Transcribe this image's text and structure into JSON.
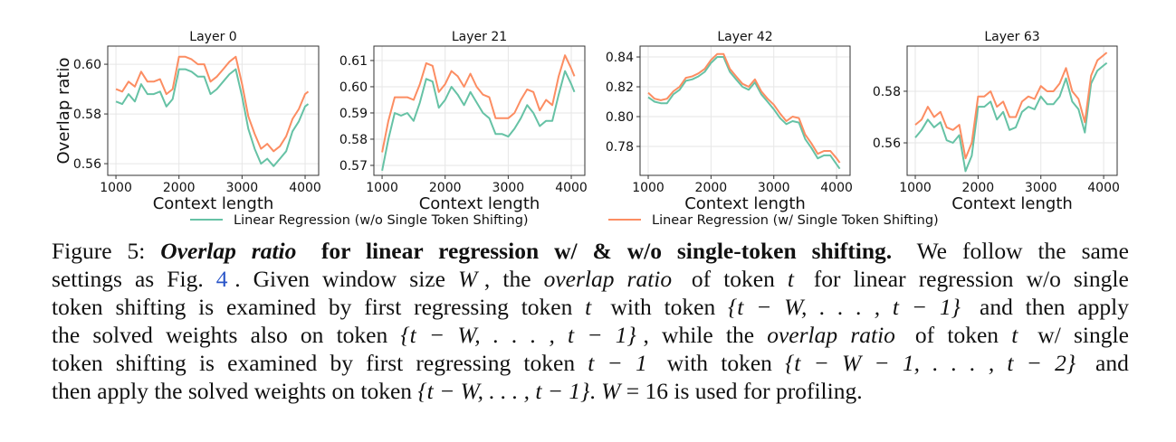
{
  "colors": {
    "without": "#66c2a5",
    "with": "#fc8d62",
    "grid": "#e6e6e6",
    "link": "#2a55c8"
  },
  "chart_data": [
    {
      "type": "line",
      "title": "Layer 0",
      "xlabel": "Context length",
      "ylabel": "Overlap ratio",
      "xlim": [
        870,
        4215
      ],
      "ylim": [
        0.5553,
        0.6073
      ],
      "xticks": [
        1000,
        2000,
        3000,
        4000
      ],
      "xtick_labels": [
        "1000",
        "2000",
        "3000",
        "4000"
      ],
      "yticks": [
        0.56,
        0.58,
        0.6
      ],
      "ytick_labels": [
        "0.56",
        "0.58",
        "0.60"
      ],
      "x": [
        1000,
        1100,
        1200,
        1300,
        1400,
        1500,
        1600,
        1700,
        1800,
        1900,
        2000,
        2100,
        2200,
        2300,
        2400,
        2500,
        2600,
        2700,
        2800,
        2900,
        3000,
        3100,
        3200,
        3300,
        3400,
        3500,
        3600,
        3700,
        3800,
        3900,
        4000,
        4050
      ],
      "series": [
        {
          "name": "Linear Regression (w/o Single Token Shifting)",
          "values": [
            0.585,
            0.584,
            0.588,
            0.585,
            0.592,
            0.588,
            0.588,
            0.589,
            0.583,
            0.586,
            0.598,
            0.598,
            0.597,
            0.595,
            0.595,
            0.588,
            0.59,
            0.593,
            0.596,
            0.598,
            0.587,
            0.574,
            0.566,
            0.56,
            0.562,
            0.559,
            0.562,
            0.565,
            0.573,
            0.577,
            0.583,
            0.584
          ]
        },
        {
          "name": "Linear Regression (w/ Single Token Shifting)",
          "values": [
            0.59,
            0.589,
            0.593,
            0.591,
            0.597,
            0.593,
            0.593,
            0.594,
            0.588,
            0.59,
            0.603,
            0.603,
            0.602,
            0.6,
            0.6,
            0.593,
            0.595,
            0.598,
            0.601,
            0.603,
            0.592,
            0.579,
            0.572,
            0.566,
            0.568,
            0.565,
            0.567,
            0.571,
            0.578,
            0.582,
            0.588,
            0.589
          ]
        }
      ]
    },
    {
      "type": "line",
      "title": "Layer 21",
      "xlabel": "Context length",
      "ylabel": "",
      "xlim": [
        870,
        4215
      ],
      "ylim": [
        0.5662,
        0.6155
      ],
      "xticks": [
        1000,
        2000,
        3000,
        4000
      ],
      "xtick_labels": [
        "1000",
        "2000",
        "3000",
        "4000"
      ],
      "yticks": [
        0.57,
        0.58,
        0.59,
        0.6,
        0.61
      ],
      "ytick_labels": [
        "0.57",
        "0.58",
        "0.59",
        "0.60",
        "0.61"
      ],
      "x": [
        1000,
        1100,
        1200,
        1300,
        1400,
        1500,
        1600,
        1700,
        1800,
        1900,
        2000,
        2100,
        2200,
        2300,
        2400,
        2500,
        2600,
        2700,
        2800,
        2900,
        3000,
        3100,
        3200,
        3300,
        3400,
        3500,
        3600,
        3700,
        3800,
        3900,
        4000,
        4050
      ],
      "series": [
        {
          "name": "Linear Regression (w/o Single Token Shifting)",
          "values": [
            0.568,
            0.58,
            0.59,
            0.589,
            0.59,
            0.587,
            0.594,
            0.603,
            0.602,
            0.592,
            0.595,
            0.6,
            0.597,
            0.593,
            0.598,
            0.594,
            0.59,
            0.588,
            0.582,
            0.582,
            0.581,
            0.584,
            0.588,
            0.593,
            0.59,
            0.585,
            0.587,
            0.587,
            0.597,
            0.606,
            0.601,
            0.598
          ]
        },
        {
          "name": "Linear Regression (w/ Single Token Shifting)",
          "values": [
            0.575,
            0.587,
            0.596,
            0.596,
            0.596,
            0.595,
            0.601,
            0.609,
            0.608,
            0.598,
            0.601,
            0.606,
            0.604,
            0.6,
            0.605,
            0.6,
            0.597,
            0.596,
            0.588,
            0.588,
            0.588,
            0.59,
            0.595,
            0.599,
            0.598,
            0.591,
            0.595,
            0.593,
            0.604,
            0.612,
            0.607,
            0.604
          ]
        }
      ]
    },
    {
      "type": "line",
      "title": "Layer 42",
      "xlabel": "Context length",
      "ylabel": "",
      "xlim": [
        870,
        4215
      ],
      "ylim": [
        0.7606,
        0.8473
      ],
      "xticks": [
        1000,
        2000,
        3000,
        4000
      ],
      "xtick_labels": [
        "1000",
        "2000",
        "3000",
        "4000"
      ],
      "yticks": [
        0.78,
        0.8,
        0.82,
        0.84
      ],
      "ytick_labels": [
        "0.78",
        "0.80",
        "0.82",
        "0.84"
      ],
      "x": [
        1000,
        1100,
        1200,
        1300,
        1400,
        1500,
        1600,
        1700,
        1800,
        1900,
        2000,
        2100,
        2200,
        2300,
        2400,
        2500,
        2600,
        2700,
        2800,
        2900,
        3000,
        3100,
        3200,
        3300,
        3400,
        3500,
        3600,
        3700,
        3800,
        3900,
        4000,
        4050
      ],
      "series": [
        {
          "name": "Linear Regression (w/o Single Token Shifting)",
          "values": [
            0.813,
            0.81,
            0.809,
            0.809,
            0.815,
            0.818,
            0.824,
            0.825,
            0.827,
            0.83,
            0.836,
            0.84,
            0.84,
            0.83,
            0.825,
            0.82,
            0.818,
            0.823,
            0.815,
            0.81,
            0.805,
            0.799,
            0.795,
            0.797,
            0.796,
            0.785,
            0.779,
            0.772,
            0.774,
            0.774,
            0.768,
            0.765
          ]
        },
        {
          "name": "Linear Regression (w/ Single Token Shifting)",
          "values": [
            0.816,
            0.812,
            0.811,
            0.812,
            0.817,
            0.82,
            0.826,
            0.827,
            0.829,
            0.832,
            0.838,
            0.842,
            0.842,
            0.832,
            0.827,
            0.822,
            0.82,
            0.825,
            0.817,
            0.812,
            0.808,
            0.802,
            0.797,
            0.8,
            0.799,
            0.788,
            0.782,
            0.775,
            0.777,
            0.777,
            0.772,
            0.769
          ]
        }
      ]
    },
    {
      "type": "line",
      "title": "Layer 63",
      "xlabel": "Context length",
      "ylabel": "",
      "xlim": [
        870,
        4215
      ],
      "ylim": [
        0.5474,
        0.5975
      ],
      "xticks": [
        1000,
        2000,
        3000,
        4000
      ],
      "xtick_labels": [
        "1000",
        "2000",
        "3000",
        "4000"
      ],
      "yticks": [
        0.56,
        0.58
      ],
      "ytick_labels": [
        "0.56",
        "0.58"
      ],
      "x": [
        1000,
        1100,
        1200,
        1300,
        1400,
        1500,
        1600,
        1700,
        1800,
        1900,
        2000,
        2100,
        2200,
        2300,
        2400,
        2500,
        2600,
        2700,
        2800,
        2900,
        3000,
        3100,
        3200,
        3300,
        3400,
        3500,
        3600,
        3700,
        3800,
        3900,
        4000,
        4050
      ],
      "series": [
        {
          "name": "Linear Regression (w/o Single Token Shifting)",
          "values": [
            0.562,
            0.565,
            0.569,
            0.566,
            0.568,
            0.561,
            0.56,
            0.563,
            0.549,
            0.555,
            0.574,
            0.574,
            0.576,
            0.569,
            0.572,
            0.565,
            0.566,
            0.572,
            0.574,
            0.573,
            0.578,
            0.575,
            0.575,
            0.578,
            0.585,
            0.576,
            0.573,
            0.564,
            0.583,
            0.588,
            0.59,
            0.591
          ]
        },
        {
          "name": "Linear Regression (w/ Single Token Shifting)",
          "values": [
            0.567,
            0.569,
            0.574,
            0.57,
            0.572,
            0.566,
            0.565,
            0.567,
            0.554,
            0.56,
            0.578,
            0.578,
            0.58,
            0.574,
            0.576,
            0.57,
            0.57,
            0.576,
            0.578,
            0.577,
            0.582,
            0.58,
            0.58,
            0.583,
            0.589,
            0.58,
            0.577,
            0.568,
            0.586,
            0.592,
            0.594,
            0.595
          ]
        }
      ]
    }
  ],
  "legend": {
    "items": [
      "Linear Regression (w/o Single Token Shifting)",
      "Linear Regression (w/ Single Token Shifting)"
    ],
    "placement": "bottom-center"
  },
  "caption": {
    "lines": [
      [
        {
          "t": "Figure 5: ",
          "s": ""
        },
        {
          "t": "Overlap ratio",
          "s": "bi"
        },
        {
          "t": " for linear regression w/ & w/o single-token shifting.",
          "s": "b"
        },
        {
          "t": " We follow the same",
          "s": ""
        }
      ],
      [
        {
          "t": "settings as Fig. ",
          "s": ""
        },
        {
          "t": "4",
          "s": "lnk"
        },
        {
          "t": ". Given window size ",
          "s": ""
        },
        {
          "t": "W",
          "s": "m"
        },
        {
          "t": ", the ",
          "s": ""
        },
        {
          "t": "overlap ratio",
          "s": "i"
        },
        {
          "t": " of token ",
          "s": ""
        },
        {
          "t": "t",
          "s": "m"
        },
        {
          "t": " for linear regression w/o single",
          "s": ""
        }
      ],
      [
        {
          "t": "token shifting is examined by first regressing token ",
          "s": ""
        },
        {
          "t": "t",
          "s": "m"
        },
        {
          "t": " with token ",
          "s": ""
        },
        {
          "t": "{t − W, . . . , t − 1}",
          "s": "m"
        },
        {
          "t": " and then apply",
          "s": ""
        }
      ],
      [
        {
          "t": "the solved weights also on token ",
          "s": ""
        },
        {
          "t": "{t − W, . . . , t − 1}",
          "s": "m"
        },
        {
          "t": ", while the ",
          "s": ""
        },
        {
          "t": "overlap ratio",
          "s": "i"
        },
        {
          "t": " of token ",
          "s": ""
        },
        {
          "t": "t",
          "s": "m"
        },
        {
          "t": " w/ single",
          "s": ""
        }
      ],
      [
        {
          "t": "token shifting is examined by first regressing token ",
          "s": ""
        },
        {
          "t": "t − 1",
          "s": "m"
        },
        {
          "t": " with token ",
          "s": ""
        },
        {
          "t": "{t − W − 1, . . . , t − 2}",
          "s": "m"
        },
        {
          "t": " and",
          "s": ""
        }
      ],
      [
        {
          "t": "then apply the solved weights on token ",
          "s": ""
        },
        {
          "t": "{t − W, . . . , t − 1}",
          "s": "m"
        },
        {
          "t": ". ",
          "s": ""
        },
        {
          "t": "W",
          "s": "m"
        },
        {
          "t": " = 16 is used for profiling.",
          "s": ""
        }
      ]
    ]
  }
}
